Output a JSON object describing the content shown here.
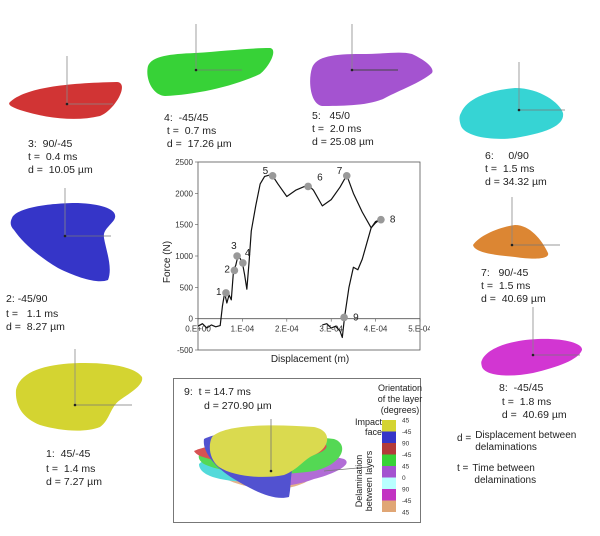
{
  "delaminations": [
    {
      "id": "1",
      "label": "1:",
      "orientation": "45/-45",
      "t": "1.4 ms",
      "d": "7.27 µm",
      "color": "#d4d431"
    },
    {
      "id": "2",
      "label": "2:",
      "orientation": "-45/90",
      "t": "1.1 ms",
      "d": "8.27 µm",
      "color": "#3535c8"
    },
    {
      "id": "3",
      "label": "3:",
      "orientation": "90/-45",
      "t": "0.4 ms",
      "d": "10.05 µm",
      "color": "#d13434"
    },
    {
      "id": "4",
      "label": "4:",
      "orientation": "-45/45",
      "t": "0.7 ms",
      "d": "17.26 µm",
      "color": "#37d237"
    },
    {
      "id": "5",
      "label": "5:",
      "orientation": "45/0",
      "t": "2.0 ms",
      "d": "25.08 µm",
      "color": "#a453d0"
    },
    {
      "id": "6",
      "label": "6:",
      "orientation": "0/90",
      "t": "1.5 ms",
      "d": "34.32 µm",
      "color": "#36d4d4"
    },
    {
      "id": "7",
      "label": "7:",
      "orientation": "90/-45",
      "t": "1.5 ms",
      "d": "40.69 µm",
      "color": "#dc8633"
    },
    {
      "id": "8",
      "label": "8:",
      "orientation": "-45/45",
      "t": "1.8 ms",
      "d": "40.69 µm",
      "color": "#d236d2"
    }
  ],
  "labels": {
    "t_prefix": "t =",
    "d_prefix": "d ="
  },
  "inset": {
    "label": "9:",
    "t": "t = 14.7 ms",
    "d": "d = 270.90 µm",
    "legend_title_lines": [
      "Orientation",
      "of the layer",
      "(degrees)"
    ],
    "impact_face_lines": [
      "Impact",
      "face"
    ],
    "side_label_lines": [
      "Delamination",
      "between layers"
    ],
    "legend_colors": [
      "#d4d431",
      "#3535c8",
      "#b33a3a",
      "#37d237",
      "#a453d0",
      "#b9ffff",
      "#c233c2",
      "#e0a675"
    ],
    "legend_values": [
      "45",
      "-45",
      "90",
      "-45",
      "45",
      "0",
      "90",
      "-45",
      "45"
    ]
  },
  "definitions": {
    "d_symbol": "d =",
    "d_text_lines": [
      "Displacement between",
      "delaminations"
    ],
    "t_symbol": "t =",
    "t_text_lines": [
      "Time between",
      "delaminations"
    ]
  },
  "chart_data": {
    "type": "line",
    "title": "",
    "xlabel": "Displacement (m)",
    "ylabel": "Force (N)",
    "xlim": [
      0,
      0.0005
    ],
    "ylim": [
      -500,
      2500
    ],
    "xticks": [
      "0.E+00",
      "1.E-04",
      "2.E-04",
      "3.E-04",
      "4.E-04",
      "5.E-04"
    ],
    "xtick_values": [
      0,
      0.0001,
      0.0002,
      0.0003,
      0.0004,
      0.0005
    ],
    "yticks": [
      "-500",
      "0",
      "500",
      "1000",
      "1500",
      "2000",
      "2500"
    ],
    "ytick_values": [
      -500,
      0,
      500,
      1000,
      1500,
      2000,
      2500
    ],
    "grid": false,
    "series": [
      {
        "name": "force-displacement",
        "x": [
          0,
          1e-05,
          2e-05,
          3e-05,
          4e-05,
          5e-05,
          5.5e-05,
          6e-05,
          6.5e-05,
          7e-05,
          7.5e-05,
          8e-05,
          8.5e-05,
          9e-05,
          9.5e-05,
          0.0001,
          0.000105,
          0.00011,
          0.000115,
          0.00012,
          0.00013,
          0.00014,
          0.00015,
          0.00016,
          0.000168,
          0.00018,
          0.0002,
          0.00022,
          0.00024,
          0.00025,
          0.00026,
          0.00028,
          0.0003,
          0.00032,
          0.000335,
          0.00035,
          0.00037,
          0.00039,
          0.0004,
          0.00041
        ],
        "y": [
          -120,
          -80,
          -150,
          -100,
          -130,
          -110,
          200,
          410,
          250,
          380,
          300,
          770,
          850,
          1000,
          960,
          890,
          700,
          470,
          900,
          1400,
          1800,
          2150,
          2270,
          2290,
          2280,
          2150,
          1950,
          2050,
          2110,
          2120,
          2050,
          1800,
          1900,
          2100,
          2290,
          2000,
          1700,
          1450,
          1530,
          1580
        ]
      },
      {
        "name": "unloading",
        "x": [
          0.00028,
          0.00029,
          0.0003,
          0.00031,
          0.00032,
          0.000325,
          0.00033,
          0.00034,
          0.00035,
          0.00036,
          0.00037,
          0.00038,
          0.00039,
          0.0004,
          0.00041
        ],
        "y": [
          -100,
          -80,
          -150,
          -120,
          -200,
          -300,
          20,
          500,
          820,
          780,
          950,
          1200,
          1450,
          1550,
          1580
        ]
      }
    ],
    "points": [
      {
        "label": "1",
        "x": 6.3e-05,
        "y": 410
      },
      {
        "label": "2",
        "x": 8.2e-05,
        "y": 770
      },
      {
        "label": "3",
        "x": 8.8e-05,
        "y": 1000
      },
      {
        "label": "4",
        "x": 0.000101,
        "y": 890
      },
      {
        "label": "5",
        "x": 0.000168,
        "y": 2280
      },
      {
        "label": "6",
        "x": 0.000248,
        "y": 2110
      },
      {
        "label": "7",
        "x": 0.000335,
        "y": 2280
      },
      {
        "label": "8",
        "x": 0.000412,
        "y": 1580
      },
      {
        "label": "9",
        "x": 0.000329,
        "y": 20
      }
    ]
  }
}
